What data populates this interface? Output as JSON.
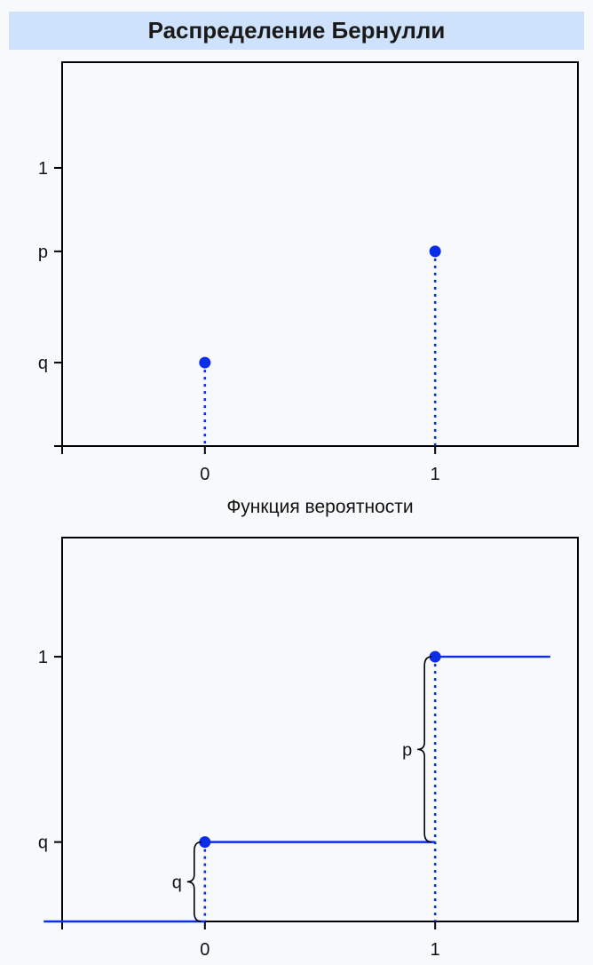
{
  "header": {
    "title": "Распределение Бернулли"
  },
  "colors": {
    "series": "#0a2ee8",
    "frame": "#000000",
    "title_bg": "#cfe2fb"
  },
  "chart_data": [
    {
      "type": "scatter",
      "style": "stem",
      "title": "",
      "xlabel": "Функция вероятности",
      "ylabel": "",
      "x_ticks": [
        {
          "value": 0,
          "label": "0"
        },
        {
          "value": 1,
          "label": "1"
        }
      ],
      "y_ticks": [
        {
          "value": 0,
          "label": ""
        },
        {
          "value": 0.3,
          "label": "q"
        },
        {
          "value": 0.7,
          "label": "p"
        },
        {
          "value": 1,
          "label": "1"
        }
      ],
      "xlim": [
        -0.62,
        1.62
      ],
      "ylim": [
        0,
        1.38
      ],
      "grid": false,
      "points": [
        {
          "x": 0,
          "y": 0.3,
          "label": "q"
        },
        {
          "x": 1,
          "y": 0.7,
          "label": "p"
        }
      ]
    },
    {
      "type": "line",
      "style": "step",
      "title": "",
      "xlabel": "",
      "ylabel": "",
      "x_ticks": [
        {
          "value": 0,
          "label": "0"
        },
        {
          "value": 1,
          "label": "1"
        }
      ],
      "y_ticks": [
        {
          "value": 0.3,
          "label": "q"
        },
        {
          "value": 1,
          "label": "1"
        }
      ],
      "xlim": [
        -0.62,
        1.62
      ],
      "ylim": [
        0,
        1.45
      ],
      "grid": false,
      "segments": [
        {
          "x": [
            -0.7,
            0
          ],
          "y": 0
        },
        {
          "x": [
            0,
            1
          ],
          "y": 0.3
        },
        {
          "x": [
            1,
            1.5
          ],
          "y": 1
        }
      ],
      "jump_points": [
        {
          "x": 0,
          "y": 0.3
        },
        {
          "x": 1,
          "y": 1
        }
      ],
      "annotations": [
        {
          "text": "q",
          "from": 0,
          "to": 0.3,
          "at_x": 0
        },
        {
          "text": "p",
          "from": 0.3,
          "to": 1,
          "at_x": 1
        }
      ]
    }
  ]
}
